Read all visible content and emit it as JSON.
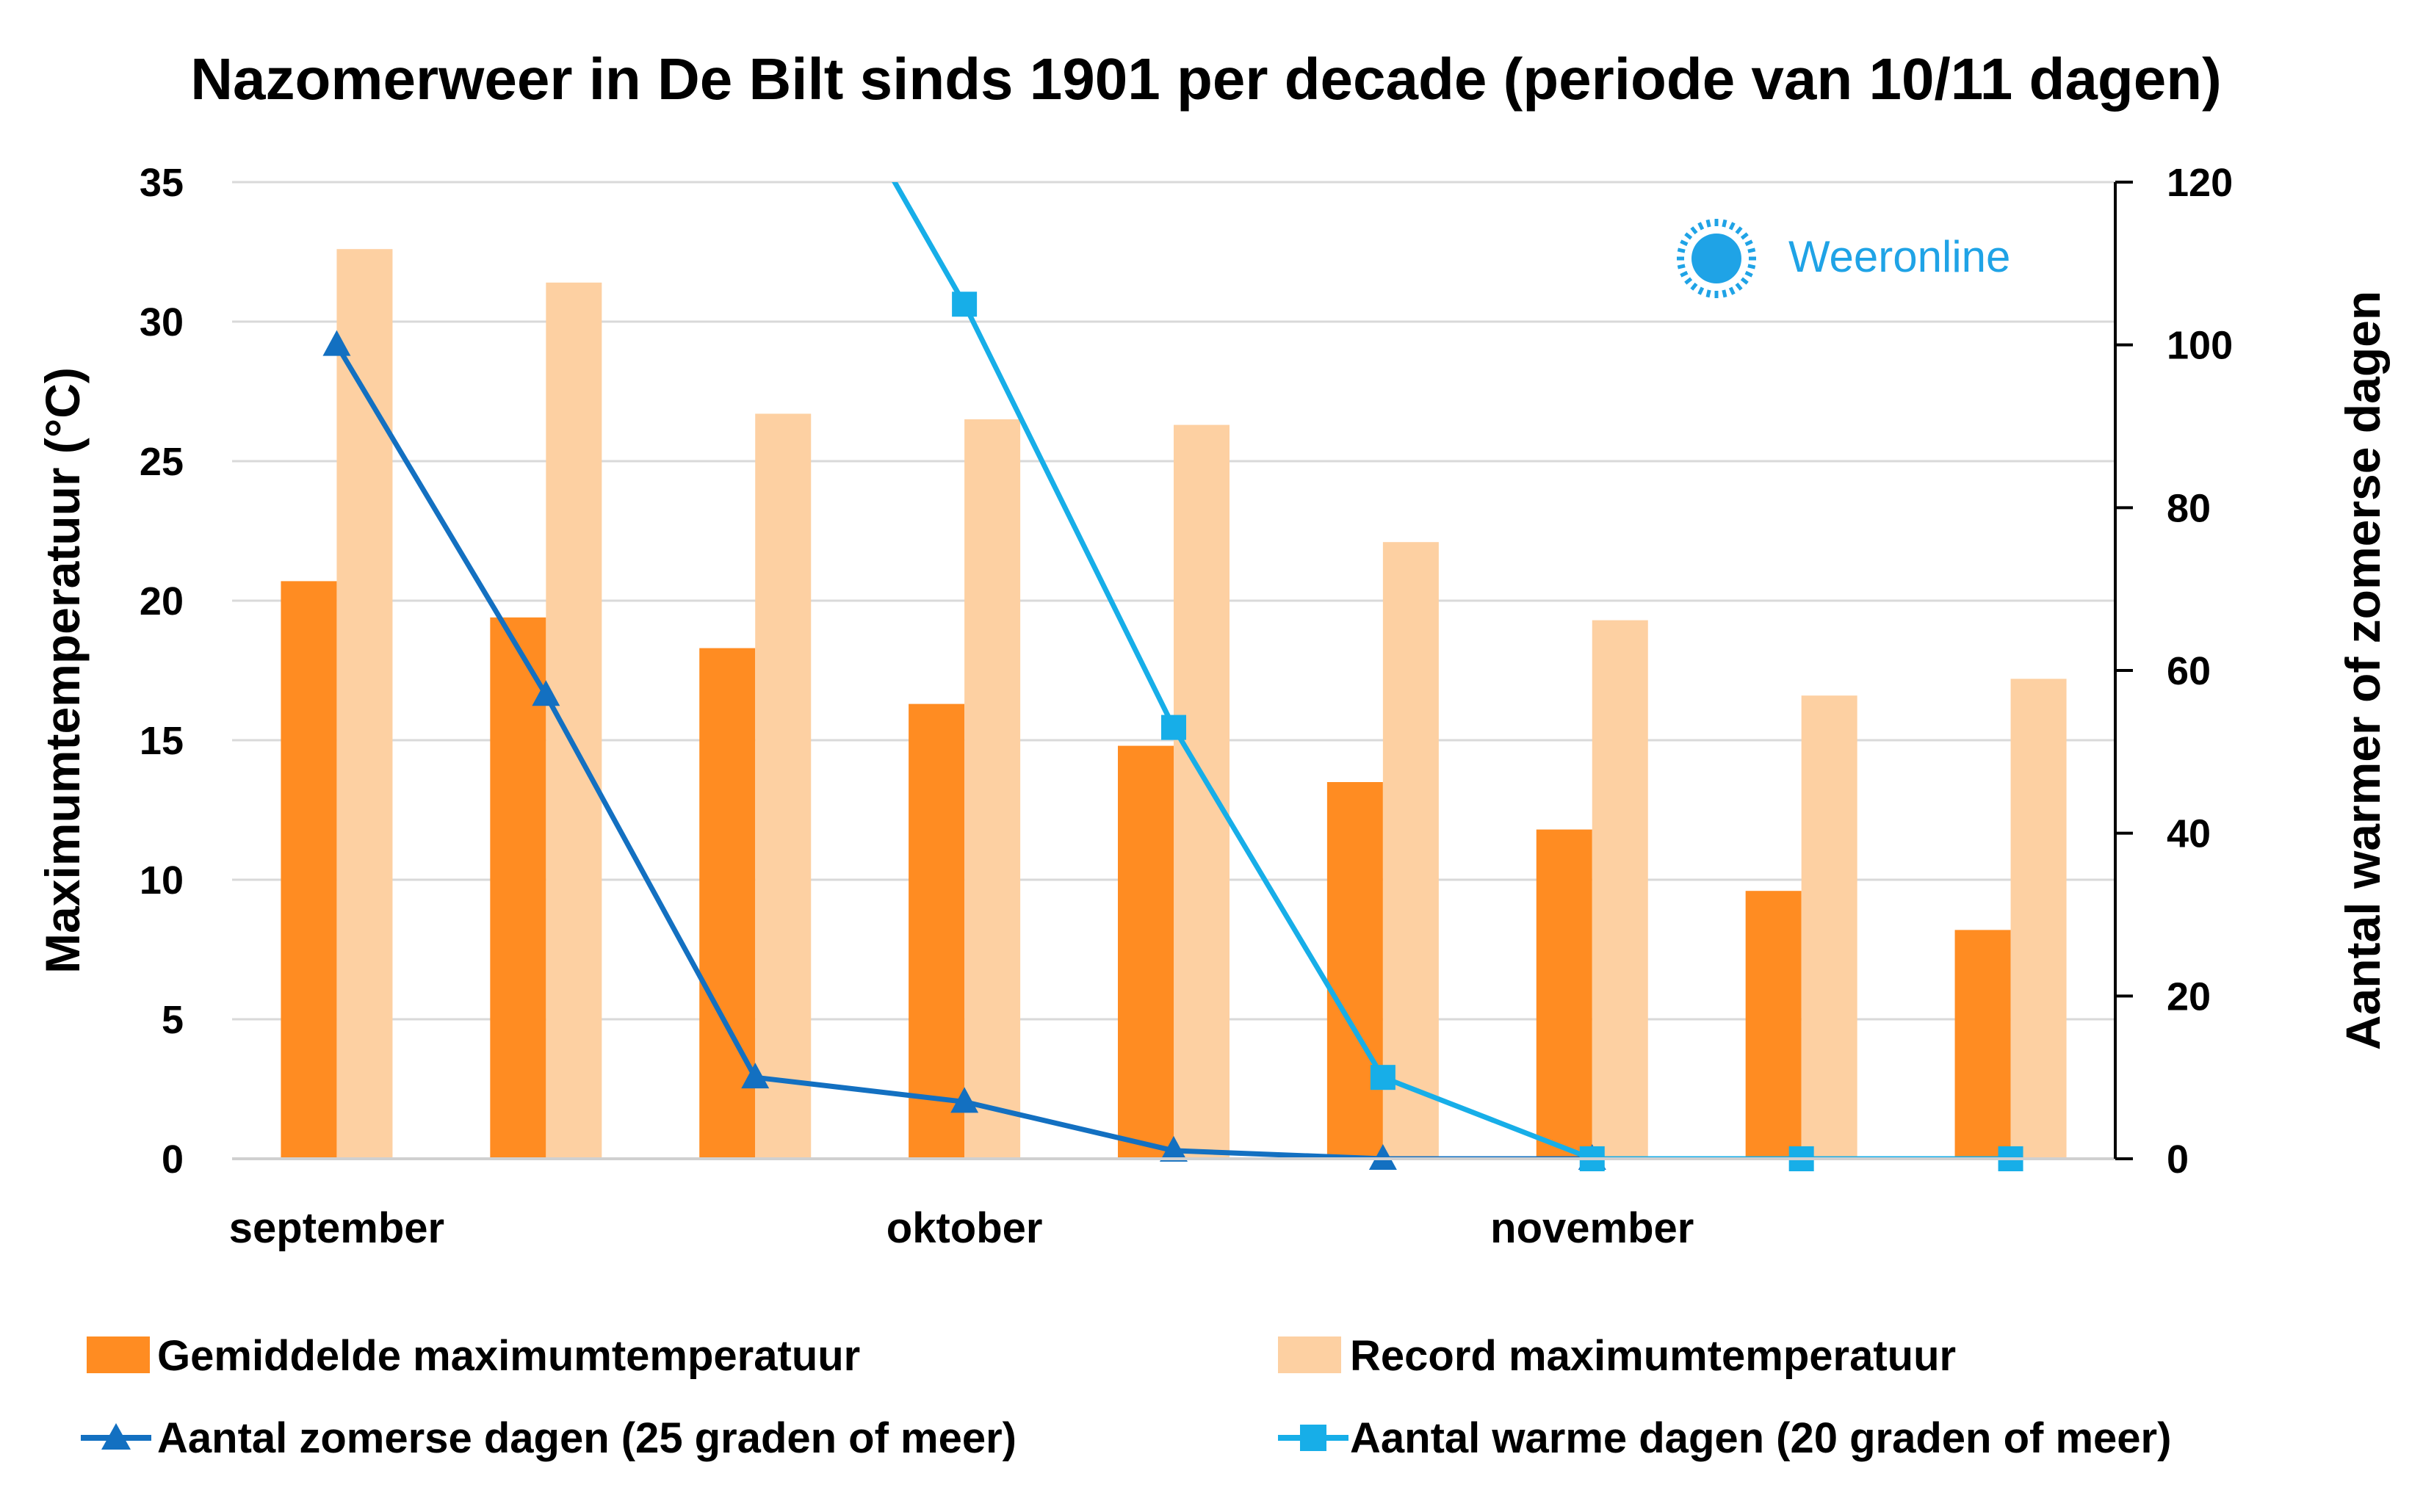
{
  "chart_data": {
    "type": "bar",
    "title": "Nazomerweer in De Bilt sinds 1901 per decade (periode van 10/11 dagen)",
    "ylabel_left": "Maximumtemperatuur (°C)",
    "ylabel_right": "Aantal warmer of zomerse dagen",
    "ylim_left": [
      0,
      35
    ],
    "yticks_left": [
      0,
      5,
      10,
      15,
      20,
      25,
      30,
      35
    ],
    "ylim_right": [
      0,
      120
    ],
    "yticks_right": [
      0,
      20,
      40,
      60,
      80,
      100,
      120
    ],
    "grid": true,
    "n_categories": 9,
    "category_labels": [
      {
        "label": "september",
        "index": 0
      },
      {
        "label": "oktober",
        "index": 3
      },
      {
        "label": "november",
        "index": 6
      }
    ],
    "bar_series": [
      {
        "name": "Gemiddelde maximumtemperatuur",
        "axis": "left",
        "color": "#ff8c22",
        "values": [
          20.7,
          19.4,
          18.3,
          16.3,
          14.8,
          13.5,
          11.8,
          9.6,
          8.2
        ]
      },
      {
        "name": "Record maximumtemperatuur",
        "axis": "left",
        "color": "#fdd0a2",
        "values": [
          32.6,
          31.4,
          26.7,
          26.5,
          26.3,
          22.1,
          19.3,
          16.6,
          17.2
        ]
      }
    ],
    "line_series": [
      {
        "name": "Aantal zomerse dagen (25 graden of meer)",
        "axis": "right",
        "color": "#1370c1",
        "marker": "triangle",
        "values": [
          100,
          57,
          10,
          7,
          1,
          0,
          0,
          null,
          null
        ]
      },
      {
        "name": "Aantal warme dagen (20 graden of meer)",
        "axis": "right",
        "color": "#17aee8",
        "marker": "square",
        "values": [
          null,
          null,
          null,
          105,
          53,
          10,
          0,
          0,
          0
        ],
        "offscale_lead_in": [
          null,
          null,
          150
        ]
      }
    ],
    "legend_placement": "bottom"
  },
  "logo": {
    "text": "Weeronline",
    "color": "#1fa3e6"
  }
}
